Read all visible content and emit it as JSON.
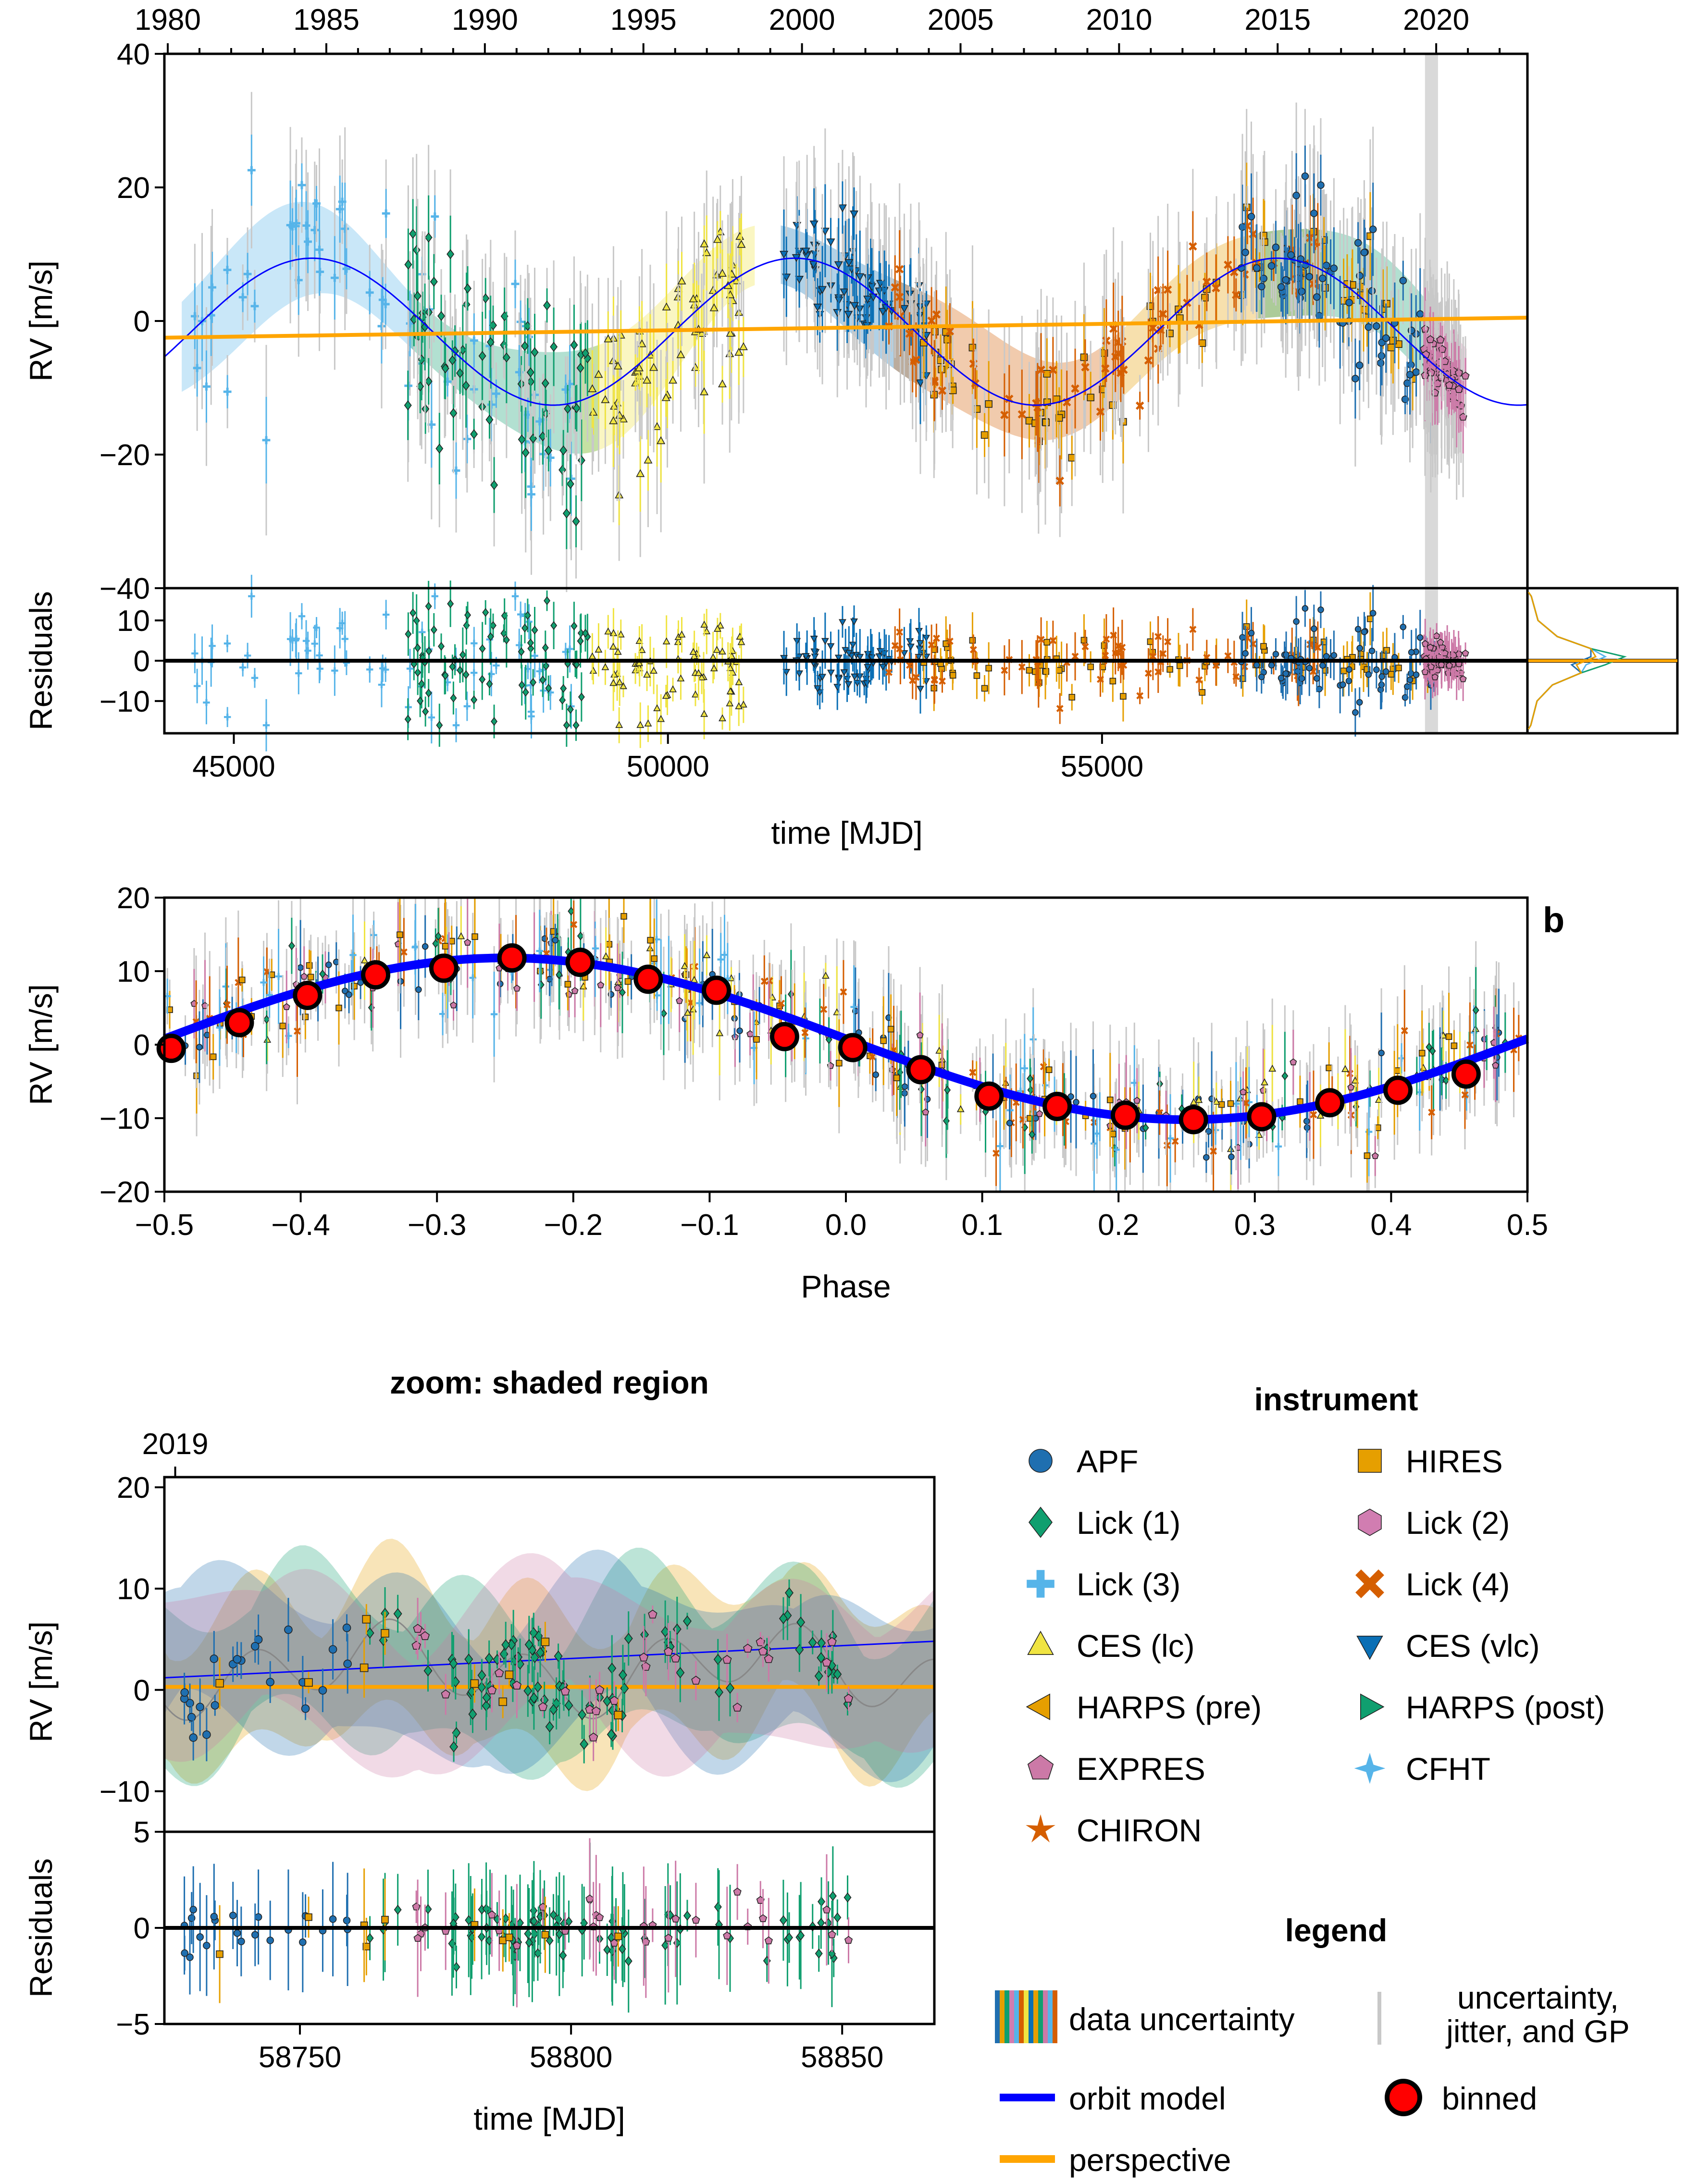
{
  "colors": {
    "apf": "#1f6fb0",
    "hires": "#e69f00",
    "lick1": "#109f6f",
    "lick2": "#d17db1",
    "lick3": "#56b4e9",
    "lick4": "#d55e00",
    "ces_lc": "#f0e442",
    "ces_vlc": "#0a6fb5",
    "harps_pre": "#e69f00",
    "harps_post": "#109f6f",
    "expres": "#cc79a7",
    "cfht": "#56b4e9",
    "chiron": "#d55e00",
    "orbit": "#0000ff",
    "perspective": "#ffa500",
    "binned": "#ff0000",
    "gp": "#c8c8c8"
  },
  "chart_data": [
    {
      "id": "time_series",
      "type": "scatter",
      "xlabel": "time [MJD]",
      "ylabel": "RV [m/s]",
      "residual_ylabel": "Residuals",
      "xlim": [
        44200,
        59900
      ],
      "ylim": [
        -40,
        40
      ],
      "residual_ylim": [
        -18,
        18
      ],
      "x_ticks": [
        45000,
        50000,
        55000
      ],
      "x_tick_labels": [
        "45000",
        "50000",
        "55000"
      ],
      "y_ticks": [
        -40,
        -20,
        0,
        20,
        40
      ],
      "y_tick_labels": [
        "−40",
        "−20",
        "0",
        "20",
        "40"
      ],
      "residual_y_ticks": [
        -10,
        0,
        10
      ],
      "residual_y_tick_labels": [
        "−10",
        "0",
        "10"
      ],
      "top_axis_years": [
        "1980",
        "1985",
        "1990",
        "1995",
        "2000",
        "2005",
        "2010",
        "2015",
        "2020"
      ],
      "top_axis_mjd": [
        44239,
        46066,
        47892,
        49718,
        51544,
        53371,
        55197,
        57023,
        58849
      ],
      "orbit_model": {
        "period_days": 5560,
        "amplitude": 11,
        "phase_ref_mjd": 45900,
        "offset": -1.6
      },
      "perspective_line": {
        "x": [
          44200,
          59900
        ],
        "y": [
          -2.5,
          0.5
        ]
      },
      "shaded_region": [
        58720,
        58870
      ],
      "series": [
        {
          "name": "Lick (3)",
          "color_key": "lick3",
          "marker": "plus",
          "x_range": [
            44500,
            48900
          ],
          "y_range": [
            -30,
            30
          ]
        },
        {
          "name": "Lick (1)",
          "color_key": "lick1",
          "marker": "diamond",
          "x_range": [
            47000,
            49100
          ],
          "y_range": [
            -35,
            35
          ]
        },
        {
          "name": "CES (lc)",
          "color_key": "ces_lc",
          "marker": "triangle",
          "x_range": [
            49000,
            50900
          ],
          "y_range": [
            -25,
            25
          ]
        },
        {
          "name": "CES (vlc)",
          "color_key": "ces_vlc",
          "marker": "tri-down",
          "x_range": [
            51300,
            53000
          ],
          "y_range": [
            -15,
            15
          ]
        },
        {
          "name": "HIRES",
          "color_key": "hires",
          "marker": "square",
          "x_range": [
            52800,
            58900
          ],
          "y_range": [
            -15,
            15
          ]
        },
        {
          "name": "Lick (4)",
          "color_key": "lick4",
          "marker": "x",
          "x_range": [
            52500,
            57600
          ],
          "y_range": [
            -14,
            14
          ]
        },
        {
          "name": "APF",
          "color_key": "apf",
          "marker": "circle",
          "x_range": [
            56600,
            58900
          ],
          "y_range": [
            -20,
            20
          ]
        },
        {
          "name": "EXPRES",
          "color_key": "expres",
          "marker": "pentagon",
          "x_range": [
            58700,
            59200
          ],
          "y_range": [
            -6,
            12
          ]
        }
      ]
    },
    {
      "id": "phase_folded",
      "type": "scatter",
      "xlabel": "Phase",
      "ylabel": "RV [m/s]",
      "panel_letter": "b",
      "xlim": [
        -0.5,
        0.5
      ],
      "ylim": [
        -20,
        20
      ],
      "x_ticks": [
        -0.5,
        -0.4,
        -0.3,
        -0.2,
        -0.1,
        0.0,
        0.1,
        0.2,
        0.3,
        0.4,
        0.5
      ],
      "x_tick_labels": [
        "−0.5",
        "−0.4",
        "−0.3",
        "−0.2",
        "−0.1",
        "0.0",
        "0.1",
        "0.2",
        "0.3",
        "0.4",
        "0.5"
      ],
      "y_ticks": [
        -20,
        -10,
        0,
        10,
        20
      ],
      "y_tick_labels": [
        "−20",
        "−10",
        "0",
        "10",
        "20"
      ],
      "binned": {
        "x": [
          -0.495,
          -0.445,
          -0.395,
          -0.345,
          -0.295,
          -0.245,
          -0.195,
          -0.145,
          -0.095,
          -0.045,
          0.005,
          0.055,
          0.105,
          0.155,
          0.205,
          0.255,
          0.305,
          0.355,
          0.405,
          0.455
        ],
        "y": [
          -0.5,
          3.0,
          6.7,
          9.5,
          10.4,
          11.8,
          11.2,
          8.9,
          7.4,
          1.1,
          -0.4,
          -3.4,
          -7.0,
          -8.4,
          -9.6,
          -10.2,
          -9.8,
          -7.9,
          -6.2,
          -4.0
        ]
      }
    },
    {
      "id": "zoom",
      "type": "scatter",
      "title": "zoom: shaded region",
      "xlabel": "time [MJD]",
      "ylabel": "RV [m/s]",
      "residual_ylabel": "Residuals",
      "xlim": [
        58725,
        58867
      ],
      "ylim": [
        -14,
        21
      ],
      "residual_ylim": [
        -5,
        5
      ],
      "x_ticks": [
        58750,
        58800,
        58850
      ],
      "x_tick_labels": [
        "58750",
        "58800",
        "58850"
      ],
      "y_ticks": [
        -10,
        0,
        10,
        20
      ],
      "y_tick_labels": [
        "−10",
        "0",
        "10",
        "20"
      ],
      "residual_y_ticks": [
        -5,
        0,
        5
      ],
      "residual_y_tick_labels": [
        "−5",
        "0",
        "5"
      ],
      "top_axis_years": [
        "2019"
      ],
      "top_axis_mjd": [
        58727
      ],
      "orbit_line": {
        "x": [
          58725,
          58867
        ],
        "y": [
          1.2,
          4.8
        ]
      },
      "perspective_line": {
        "x": [
          58725,
          58867
        ],
        "y": [
          0.3,
          0.3
        ]
      }
    }
  ],
  "legend": {
    "instrument_title": "instrument",
    "instruments": [
      {
        "label": "APF",
        "color_key": "apf",
        "marker": "circle"
      },
      {
        "label": "HIRES",
        "color_key": "hires",
        "marker": "square"
      },
      {
        "label": "Lick (1)",
        "color_key": "lick1",
        "marker": "diamond"
      },
      {
        "label": "Lick (2)",
        "color_key": "lick2",
        "marker": "hexagon"
      },
      {
        "label": "Lick (3)",
        "color_key": "lick3",
        "marker": "plus"
      },
      {
        "label": "Lick (4)",
        "color_key": "lick4",
        "marker": "x"
      },
      {
        "label": "CES (lc)",
        "color_key": "ces_lc",
        "marker": "triangle"
      },
      {
        "label": "CES (vlc)",
        "color_key": "ces_vlc",
        "marker": "tri-down"
      },
      {
        "label": "HARPS (pre)",
        "color_key": "harps_pre",
        "marker": "tri-left"
      },
      {
        "label": "HARPS (post)",
        "color_key": "harps_post",
        "marker": "tri-right"
      },
      {
        "label": "EXPRES",
        "color_key": "expres",
        "marker": "pentagon"
      },
      {
        "label": "CFHT",
        "color_key": "cfht",
        "marker": "star4"
      },
      {
        "label": "CHIRON",
        "color_key": "chiron",
        "marker": "star5"
      }
    ],
    "legend_title": "legend",
    "data_uncertainty": "data uncertainty",
    "uncertainty_line1": "uncertainty,",
    "uncertainty_line2": "jitter, and GP",
    "orbit_model": "orbit model",
    "binned": "binned",
    "perspective": "perspective"
  }
}
